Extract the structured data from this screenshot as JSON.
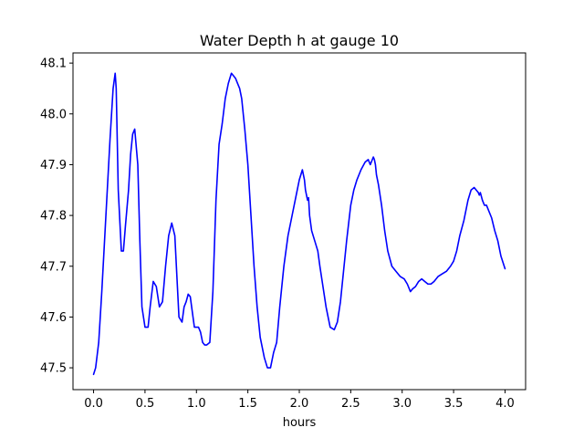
{
  "chart_data": {
    "type": "line",
    "title": "Water Depth h at gauge 10",
    "xlabel": "hours",
    "ylabel": "",
    "xlim": [
      -0.2,
      4.2
    ],
    "ylim": [
      47.457,
      48.12
    ],
    "xticks": [
      0.0,
      0.5,
      1.0,
      1.5,
      2.0,
      2.5,
      3.0,
      3.5,
      4.0
    ],
    "xtick_labels": [
      "0.0",
      "0.5",
      "1.0",
      "1.5",
      "2.0",
      "2.5",
      "3.0",
      "3.5",
      "4.0"
    ],
    "yticks": [
      47.5,
      47.6,
      47.7,
      47.8,
      47.9,
      48.0,
      48.1
    ],
    "ytick_labels": [
      "47.5",
      "47.6",
      "47.7",
      "47.8",
      "47.9",
      "48.0",
      "48.1"
    ],
    "grid": false,
    "legend": "none",
    "series": [
      {
        "color": "#0000ff",
        "x": [
          0.0,
          0.02,
          0.05,
          0.08,
          0.12,
          0.16,
          0.19,
          0.21,
          0.22,
          0.24,
          0.27,
          0.29,
          0.31,
          0.34,
          0.36,
          0.38,
          0.4,
          0.43,
          0.45,
          0.47,
          0.5,
          0.53,
          0.55,
          0.58,
          0.61,
          0.64,
          0.67,
          0.7,
          0.73,
          0.76,
          0.79,
          0.81,
          0.83,
          0.86,
          0.88,
          0.9,
          0.92,
          0.94,
          0.96,
          0.98,
          1.0,
          1.02,
          1.04,
          1.06,
          1.08,
          1.1,
          1.13,
          1.16,
          1.19,
          1.22,
          1.25,
          1.28,
          1.31,
          1.34,
          1.36,
          1.38,
          1.4,
          1.42,
          1.44,
          1.47,
          1.5,
          1.53,
          1.56,
          1.59,
          1.62,
          1.66,
          1.69,
          1.72,
          1.75,
          1.78,
          1.81,
          1.85,
          1.89,
          1.93,
          1.97,
          2.0,
          2.03,
          2.05,
          2.06,
          2.07,
          2.08,
          2.09,
          2.1,
          2.12,
          2.15,
          2.18,
          2.2,
          2.23,
          2.26,
          2.3,
          2.34,
          2.37,
          2.4,
          2.43,
          2.46,
          2.5,
          2.53,
          2.56,
          2.6,
          2.64,
          2.67,
          2.69,
          2.71,
          2.72,
          2.73,
          2.74,
          2.75,
          2.77,
          2.8,
          2.83,
          2.86,
          2.9,
          2.94,
          2.98,
          3.02,
          3.05,
          3.08,
          3.1,
          3.13,
          3.16,
          3.19,
          3.22,
          3.25,
          3.28,
          3.31,
          3.35,
          3.39,
          3.43,
          3.47,
          3.5,
          3.53,
          3.56,
          3.6,
          3.64,
          3.67,
          3.7,
          3.72,
          3.74,
          3.75,
          3.76,
          3.78,
          3.8,
          3.82,
          3.84,
          3.87,
          3.9,
          3.93,
          3.96,
          4.0
        ],
        "y": [
          47.487,
          47.5,
          47.55,
          47.65,
          47.8,
          47.95,
          48.05,
          48.08,
          48.05,
          47.85,
          47.73,
          47.73,
          47.78,
          47.85,
          47.92,
          47.96,
          47.97,
          47.9,
          47.75,
          47.62,
          47.58,
          47.58,
          47.62,
          47.67,
          47.66,
          47.62,
          47.63,
          47.7,
          47.76,
          47.785,
          47.76,
          47.68,
          47.6,
          47.59,
          47.62,
          47.63,
          47.645,
          47.64,
          47.61,
          47.58,
          47.58,
          47.58,
          47.57,
          47.55,
          47.545,
          47.545,
          47.55,
          47.65,
          47.83,
          47.94,
          47.98,
          48.03,
          48.06,
          48.08,
          48.075,
          48.07,
          48.06,
          48.05,
          48.03,
          47.97,
          47.9,
          47.8,
          47.7,
          47.62,
          47.56,
          47.52,
          47.5,
          47.5,
          47.53,
          47.55,
          47.62,
          47.7,
          47.76,
          47.8,
          47.84,
          47.87,
          47.89,
          47.87,
          47.85,
          47.84,
          47.83,
          47.835,
          47.8,
          47.77,
          47.75,
          47.73,
          47.7,
          47.66,
          47.62,
          47.58,
          47.575,
          47.59,
          47.63,
          47.69,
          47.75,
          47.82,
          47.85,
          47.87,
          47.89,
          47.905,
          47.91,
          47.9,
          47.91,
          47.915,
          47.91,
          47.9,
          47.88,
          47.86,
          47.82,
          47.77,
          47.73,
          47.7,
          47.69,
          47.68,
          47.675,
          47.665,
          47.65,
          47.655,
          47.66,
          47.67,
          47.675,
          47.67,
          47.665,
          47.665,
          47.67,
          47.68,
          47.685,
          47.69,
          47.7,
          47.71,
          47.73,
          47.76,
          47.79,
          47.83,
          47.85,
          47.855,
          47.85,
          47.845,
          47.84,
          47.845,
          47.83,
          47.82,
          47.82,
          47.81,
          47.795,
          47.77,
          47.75,
          47.72,
          47.695
        ]
      }
    ]
  }
}
